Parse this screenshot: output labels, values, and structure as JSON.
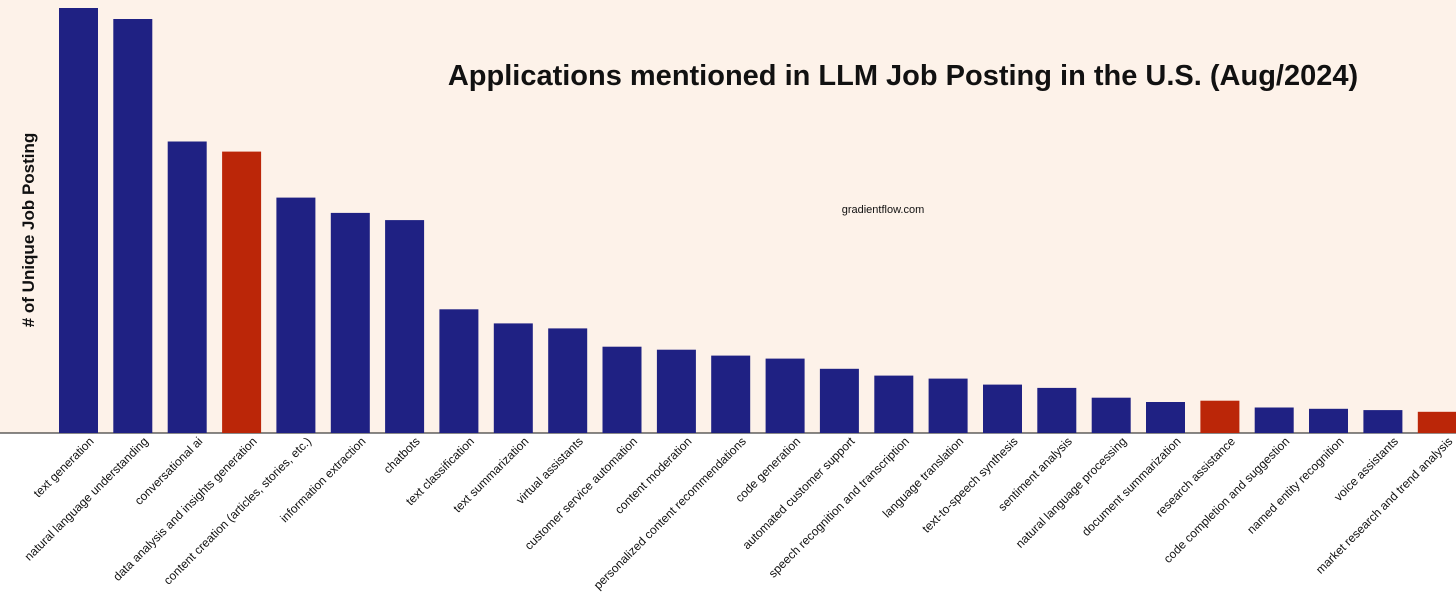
{
  "chart_data": {
    "type": "bar",
    "title": "Applications mentioned in LLM Job Posting in the U.S. (Aug/2024)",
    "ylabel": "# of Unique Job Posting",
    "xlabel": "",
    "watermark": "gradientflow.com",
    "ylim": [
      0,
      100
    ],
    "grid": false,
    "legend": "none",
    "colors": {
      "default": "#1f2183",
      "highlight": "#bb2608",
      "background": "#fdf2e9"
    },
    "categories": [
      "text generation",
      "natural language understanding",
      "conversational ai",
      "data analysis and insights generation",
      "content creation (articles, stories, etc.)",
      "information extraction",
      "chatbots",
      "text classification",
      "text summarization",
      "virtual assistants",
      "customer service automation",
      "content moderation",
      "personalized content recommendations",
      "code generation",
      "automated customer support",
      "speech recognition and transcription",
      "language translation",
      "text-to-speech synthesis",
      "sentiment analysis",
      "natural language processing",
      "document summarization",
      "research assistance",
      "code completion and suggestion",
      "named entity recognition",
      "voice assistants",
      "market research and trend analysis"
    ],
    "values": [
      100,
      97.4,
      68.6,
      66.2,
      55.4,
      51.8,
      50.1,
      29.1,
      25.8,
      24.6,
      20.3,
      19.6,
      18.2,
      17.5,
      15.1,
      13.5,
      12.8,
      11.4,
      10.6,
      8.3,
      7.3,
      7.6,
      6.0,
      5.7,
      5.4,
      5.0
    ],
    "highlighted": [
      "data analysis and insights generation",
      "research assistance",
      "market research and trend analysis"
    ]
  }
}
